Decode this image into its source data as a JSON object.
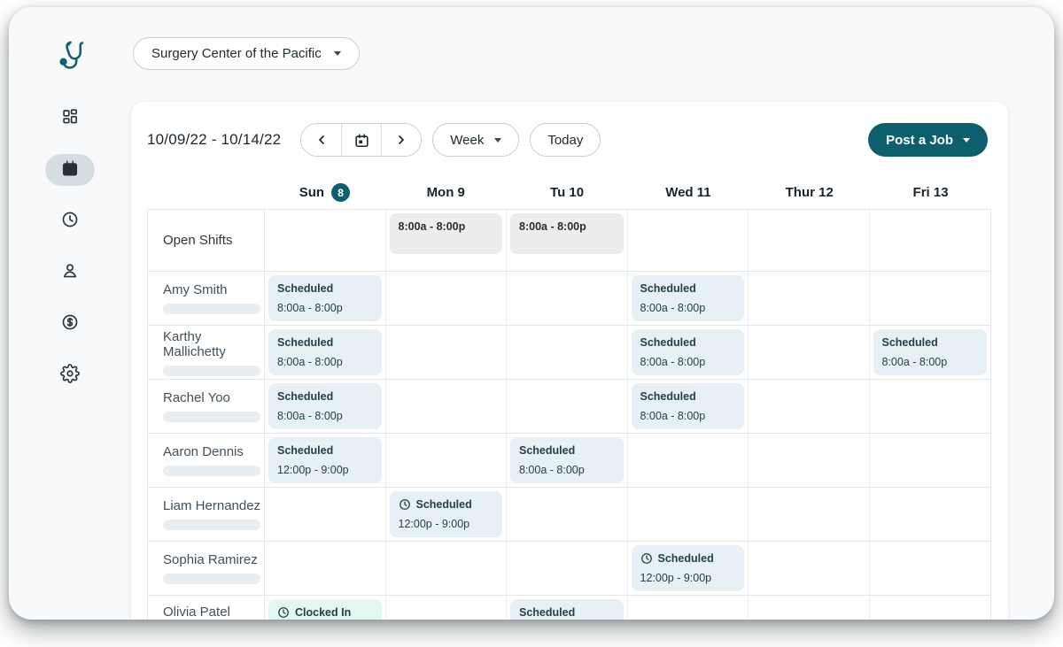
{
  "header": {
    "facility": "Surgery Center of the Pacific"
  },
  "sidebar": {
    "items": [
      {
        "name": "dashboard",
        "icon": "dashboard-icon",
        "active": false
      },
      {
        "name": "schedule",
        "icon": "calendar-icon",
        "active": true
      },
      {
        "name": "time-clock",
        "icon": "clock-icon",
        "active": false
      },
      {
        "name": "staff",
        "icon": "person-icon",
        "active": false
      },
      {
        "name": "payments",
        "icon": "dollar-icon",
        "active": false
      },
      {
        "name": "settings",
        "icon": "gear-icon",
        "active": false
      }
    ]
  },
  "toolbar": {
    "date_range": "10/09/22 - 10/14/22",
    "view": "Week",
    "today": "Today",
    "post_job": "Post a Job"
  },
  "calendar": {
    "days": [
      {
        "label": "Sun",
        "badge": "8"
      },
      {
        "label": "Mon 9"
      },
      {
        "label": "Tu 10"
      },
      {
        "label": "Wed 11"
      },
      {
        "label": "Thur 12"
      },
      {
        "label": "Fri 13"
      }
    ],
    "rows": [
      {
        "name": "Open Shifts",
        "kind": "open-shifts",
        "shifts": [
          {
            "day": 1,
            "type": "open",
            "time": "8:00a - 8:00p"
          },
          {
            "day": 2,
            "type": "open",
            "time": "8:00a - 8:00p"
          }
        ]
      },
      {
        "name": "Amy Smith",
        "kind": "staff",
        "shifts": [
          {
            "day": 0,
            "type": "scheduled",
            "label": "Scheduled",
            "time": "8:00a - 8:00p"
          },
          {
            "day": 3,
            "type": "scheduled",
            "label": "Scheduled",
            "time": "8:00a - 8:00p"
          }
        ]
      },
      {
        "name": "Karthy Mallichetty",
        "kind": "staff",
        "shifts": [
          {
            "day": 0,
            "type": "scheduled",
            "label": "Scheduled",
            "time": "8:00a - 8:00p"
          },
          {
            "day": 3,
            "type": "scheduled",
            "label": "Scheduled",
            "time": "8:00a - 8:00p"
          },
          {
            "day": 5,
            "type": "scheduled",
            "label": "Scheduled",
            "time": "8:00a - 8:00p"
          }
        ]
      },
      {
        "name": "Rachel Yoo",
        "kind": "staff",
        "shifts": [
          {
            "day": 0,
            "type": "scheduled",
            "label": "Scheduled",
            "time": "8:00a - 8:00p"
          },
          {
            "day": 3,
            "type": "scheduled",
            "label": "Scheduled",
            "time": "8:00a - 8:00p"
          }
        ]
      },
      {
        "name": "Aaron Dennis",
        "kind": "staff",
        "shifts": [
          {
            "day": 0,
            "type": "scheduled",
            "label": "Scheduled",
            "time": "12:00p - 9:00p"
          },
          {
            "day": 2,
            "type": "scheduled",
            "label": "Scheduled",
            "time": "8:00a - 8:00p"
          }
        ]
      },
      {
        "name": "Liam Hernandez",
        "kind": "staff",
        "shifts": [
          {
            "day": 1,
            "type": "scheduled",
            "label": "Scheduled",
            "clock_icon": true,
            "time": "12:00p - 9:00p"
          }
        ]
      },
      {
        "name": "Sophia Ramirez",
        "kind": "staff",
        "shifts": [
          {
            "day": 3,
            "type": "scheduled",
            "label": "Scheduled",
            "clock_icon": true,
            "time": "12:00p - 9:00p"
          }
        ]
      },
      {
        "name": "Olivia Patel",
        "kind": "staff",
        "shifts": [
          {
            "day": 0,
            "type": "clocked-in",
            "label": "Clocked In",
            "clock_icon": true
          },
          {
            "day": 2,
            "type": "scheduled",
            "label": "Scheduled"
          }
        ]
      }
    ]
  },
  "colors": {
    "accent_teal": "#0d5f6e",
    "scheduled_bg": "#e7f0f4",
    "open_shift_bg": "#ededee",
    "clocked_in_bg": "#e1f7ef",
    "active_nav_bg": "#d5dfe3",
    "card_text": "#24414b"
  }
}
